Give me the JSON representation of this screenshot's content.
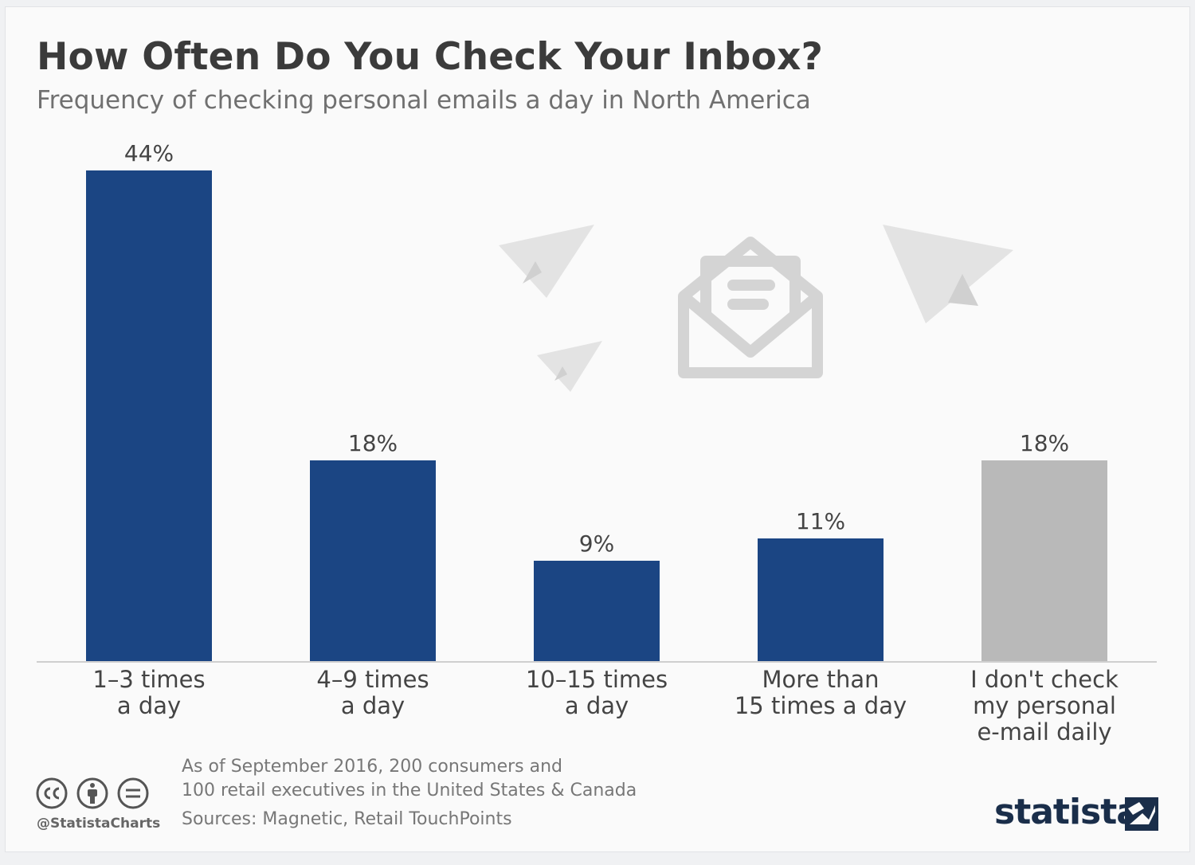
{
  "chart_data": {
    "type": "bar",
    "title": "How Often Do You Check Your Inbox?",
    "subtitle": "Frequency of checking personal emails a day in North America",
    "categories": [
      "1–3 times\na day",
      "4–9 times\na day",
      "10–15 times\na day",
      "More than\n15 times a day",
      "I don't check\nmy personal\ne-mail daily"
    ],
    "values": [
      44,
      18,
      9,
      11,
      18
    ],
    "value_labels": [
      "44%",
      "18%",
      "9%",
      "11%",
      "18%"
    ],
    "colors": [
      "#1b4583",
      "#1b4583",
      "#1b4583",
      "#1b4583",
      "#b9b9b9"
    ],
    "ylim": [
      0,
      44
    ],
    "grid": false,
    "legend": "none"
  },
  "footer": {
    "note_line1": "As of September 2016, 200 consumers and",
    "note_line2": "100 retail executives in the United States & Canada",
    "sources": "Sources: Magnetic, Retail TouchPoints",
    "handle": "@StatistaCharts",
    "brand": "statista"
  },
  "icons": {
    "license": [
      "creative-commons-icon",
      "attribution-icon",
      "no-derivatives-icon"
    ],
    "decoration": [
      "paper-plane-icon",
      "envelope-icon"
    ]
  }
}
